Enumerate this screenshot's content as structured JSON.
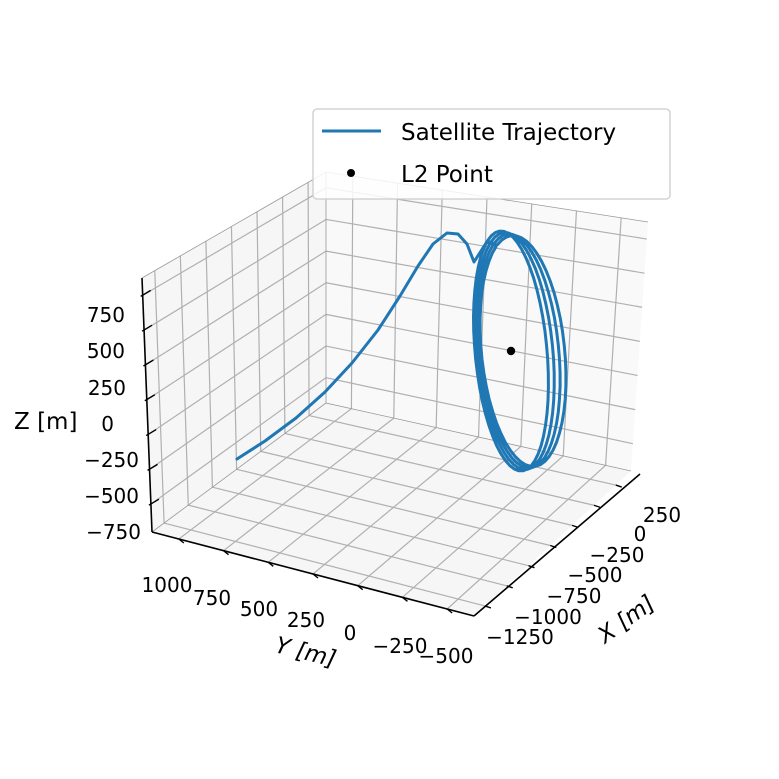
{
  "chart_data": {
    "type": "line",
    "projection": "3d",
    "xlabel": "X [m]",
    "ylabel": "Y [m]",
    "zlabel": "Z [m]",
    "x_ticks": [
      "250",
      "0",
      "−250",
      "−500",
      "−750",
      "−1000",
      "−1250"
    ],
    "y_ticks": [
      "1000",
      "750",
      "500",
      "250",
      "0",
      "−250",
      "−500"
    ],
    "z_ticks": [
      "750",
      "500",
      "250",
      "0",
      "−250",
      "−500",
      "−750"
    ],
    "xlim": [
      -1400,
      400
    ],
    "ylim": [
      -550,
      1100
    ],
    "zlim": [
      -850,
      950
    ],
    "grid": true,
    "legend": {
      "position": "top-right",
      "entries": [
        "Satellite Trajectory",
        "L2 Point"
      ]
    },
    "series": [
      {
        "name": "Satellite Trajectory",
        "kind": "line",
        "color": "#1f77b4",
        "approx_points": [
          {
            "x": -1250,
            "y": 1000,
            "z": -600
          },
          {
            "x": -700,
            "y": 700,
            "z": 100
          },
          {
            "x": -300,
            "y": 450,
            "z": 700
          },
          {
            "x": -50,
            "y": 250,
            "z": 800
          }
        ],
        "halo_orbit": {
          "center": {
            "x": 0,
            "y": 0,
            "z": 0
          },
          "amplitude_z": 780,
          "revolutions": 4
        }
      },
      {
        "name": "L2 Point",
        "kind": "scatter",
        "color": "#000000",
        "points": [
          {
            "x": 0,
            "y": 0,
            "z": 0
          }
        ]
      }
    ]
  }
}
